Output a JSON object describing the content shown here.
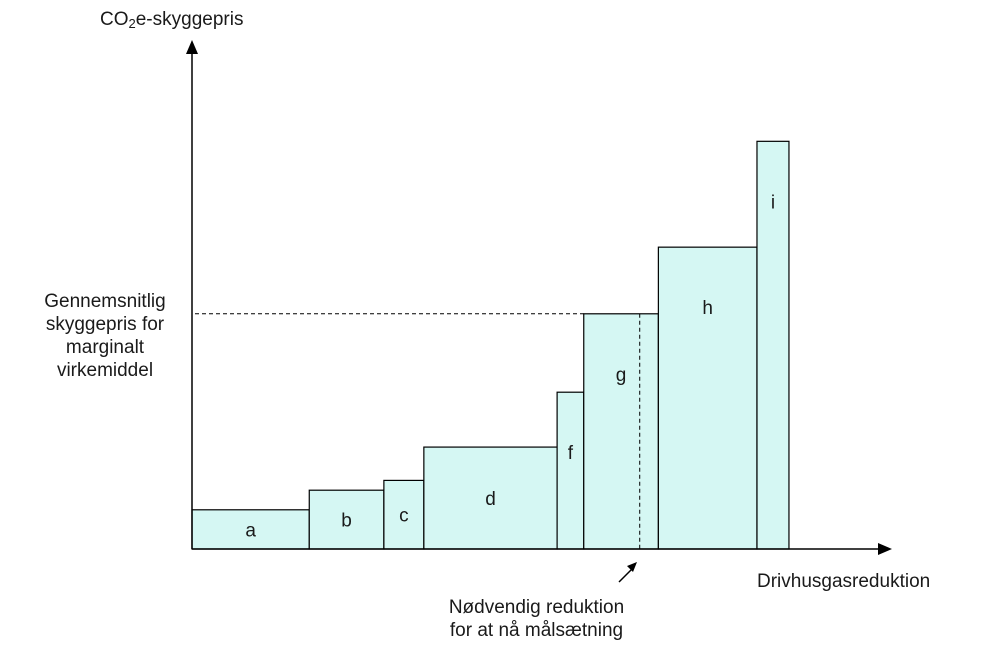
{
  "y_axis": {
    "label_prefix": "CO",
    "label_subscript": "2",
    "label_suffix": "e-skyggepris"
  },
  "x_axis": {
    "label": "Drivhusgasreduktion"
  },
  "average_price_label": "Gennemsnitlig\nskyggepris for\nmarginalt\nvirkemiddel",
  "required_reduction_label": "Nødvendig reduktion\nfor at nå målsætning",
  "colors": {
    "bar_fill": "#d5f7f3",
    "line": "#000000"
  },
  "chart_data": {
    "type": "bar",
    "categories": [
      "a",
      "b",
      "c",
      "d",
      "f",
      "g",
      "h",
      "i"
    ],
    "widths": [
      2.2,
      1.4,
      0.75,
      2.5,
      0.5,
      1.4,
      1.85,
      0.6
    ],
    "values": [
      1.0,
      1.5,
      1.75,
      2.6,
      4.0,
      6.0,
      7.7,
      10.4
    ],
    "average_price_level": 6.0,
    "required_reduction_at": 8.4
  }
}
